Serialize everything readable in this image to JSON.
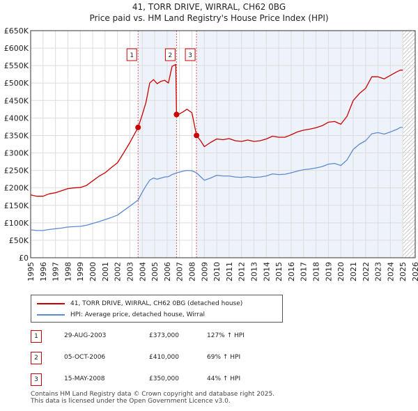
{
  "title": {
    "line1": "41, TORR DRIVE, WIRRAL, CH62 0BG",
    "line2": "Price paid vs. HM Land Registry's House Price Index (HPI)"
  },
  "colors": {
    "property": "#cc0000",
    "hpi": "#5b8bd0",
    "grid": "#dddddd",
    "axis": "#333333",
    "shade": "#eef2fa",
    "marker_line": "#e06060",
    "hatch": "#999999"
  },
  "chart_data": {
    "type": "line",
    "xlim": [
      1995,
      2026
    ],
    "ylim": [
      0,
      650000
    ],
    "y_ticks": [
      {
        "value": 0,
        "label": "£0"
      },
      {
        "value": 50000,
        "label": "£50K"
      },
      {
        "value": 100000,
        "label": "£100K"
      },
      {
        "value": 150000,
        "label": "£150K"
      },
      {
        "value": 200000,
        "label": "£200K"
      },
      {
        "value": 250000,
        "label": "£250K"
      },
      {
        "value": 300000,
        "label": "£300K"
      },
      {
        "value": 350000,
        "label": "£350K"
      },
      {
        "value": 400000,
        "label": "£400K"
      },
      {
        "value": 450000,
        "label": "£450K"
      },
      {
        "value": 500000,
        "label": "£500K"
      },
      {
        "value": 550000,
        "label": "£550K"
      },
      {
        "value": 600000,
        "label": "£600K"
      },
      {
        "value": 650000,
        "label": "£650K"
      }
    ],
    "x_ticks": [
      "1995",
      "1996",
      "1997",
      "1998",
      "1999",
      "2000",
      "2001",
      "2002",
      "2003",
      "2004",
      "2005",
      "2006",
      "2007",
      "2008",
      "2009",
      "2010",
      "2011",
      "2012",
      "2013",
      "2014",
      "2015",
      "2016",
      "2017",
      "2018",
      "2019",
      "2020",
      "2021",
      "2022",
      "2023",
      "2024",
      "2025",
      "2026"
    ],
    "shaded_ranges": [
      [
        2003.66,
        2006.76
      ],
      [
        2008.37,
        2025.0
      ]
    ],
    "hatch_start": 2025.0,
    "series": [
      {
        "name": "41, TORR DRIVE, WIRRAL, CH62 0BG (detached house)",
        "color": "#cc0000",
        "points": [
          [
            1995.0,
            180000
          ],
          [
            1995.5,
            176000
          ],
          [
            1996.0,
            176000
          ],
          [
            1996.5,
            183000
          ],
          [
            1997.0,
            186000
          ],
          [
            1997.5,
            192000
          ],
          [
            1998.0,
            198000
          ],
          [
            1998.5,
            200000
          ],
          [
            1999.0,
            201000
          ],
          [
            1999.5,
            207000
          ],
          [
            2000.0,
            220000
          ],
          [
            2000.5,
            233000
          ],
          [
            2001.0,
            243000
          ],
          [
            2001.5,
            258000
          ],
          [
            2002.0,
            272000
          ],
          [
            2002.5,
            300000
          ],
          [
            2003.0,
            330000
          ],
          [
            2003.66,
            373000
          ],
          [
            2004.0,
            410000
          ],
          [
            2004.3,
            445000
          ],
          [
            2004.6,
            500000
          ],
          [
            2004.9,
            510000
          ],
          [
            2005.2,
            498000
          ],
          [
            2005.5,
            505000
          ],
          [
            2005.8,
            508000
          ],
          [
            2006.1,
            500000
          ],
          [
            2006.4,
            548000
          ],
          [
            2006.7,
            553000
          ],
          [
            2006.76,
            410000
          ],
          [
            2007.0,
            412000
          ],
          [
            2007.3,
            418000
          ],
          [
            2007.6,
            425000
          ],
          [
            2008.0,
            415000
          ],
          [
            2008.37,
            350000
          ],
          [
            2008.7,
            335000
          ],
          [
            2009.0,
            318000
          ],
          [
            2009.5,
            330000
          ],
          [
            2010.0,
            340000
          ],
          [
            2010.5,
            338000
          ],
          [
            2011.0,
            341000
          ],
          [
            2011.5,
            335000
          ],
          [
            2012.0,
            333000
          ],
          [
            2012.5,
            337000
          ],
          [
            2013.0,
            333000
          ],
          [
            2013.5,
            335000
          ],
          [
            2014.0,
            340000
          ],
          [
            2014.5,
            348000
          ],
          [
            2015.0,
            345000
          ],
          [
            2015.5,
            345000
          ],
          [
            2016.0,
            352000
          ],
          [
            2016.5,
            360000
          ],
          [
            2017.0,
            365000
          ],
          [
            2017.5,
            368000
          ],
          [
            2018.0,
            372000
          ],
          [
            2018.5,
            378000
          ],
          [
            2019.0,
            388000
          ],
          [
            2019.5,
            390000
          ],
          [
            2020.0,
            382000
          ],
          [
            2020.5,
            405000
          ],
          [
            2021.0,
            450000
          ],
          [
            2021.5,
            470000
          ],
          [
            2022.0,
            485000
          ],
          [
            2022.5,
            518000
          ],
          [
            2023.0,
            518000
          ],
          [
            2023.5,
            512000
          ],
          [
            2024.0,
            522000
          ],
          [
            2024.5,
            532000
          ],
          [
            2024.8,
            537000
          ],
          [
            2025.0,
            537000
          ]
        ]
      },
      {
        "name": "HPI: Average price, detached house, Wirral",
        "color": "#5b8bd0",
        "points": [
          [
            1995.0,
            80000
          ],
          [
            1995.5,
            78000
          ],
          [
            1996.0,
            78000
          ],
          [
            1996.5,
            81000
          ],
          [
            1997.0,
            83000
          ],
          [
            1997.5,
            85000
          ],
          [
            1998.0,
            88000
          ],
          [
            1998.5,
            89000
          ],
          [
            1999.0,
            90000
          ],
          [
            1999.5,
            93000
          ],
          [
            2000.0,
            98000
          ],
          [
            2000.5,
            103000
          ],
          [
            2001.0,
            109000
          ],
          [
            2001.5,
            115000
          ],
          [
            2002.0,
            122000
          ],
          [
            2002.5,
            135000
          ],
          [
            2003.0,
            148000
          ],
          [
            2003.66,
            165000
          ],
          [
            2004.0,
            188000
          ],
          [
            2004.3,
            206000
          ],
          [
            2004.6,
            222000
          ],
          [
            2004.9,
            228000
          ],
          [
            2005.2,
            225000
          ],
          [
            2005.5,
            228000
          ],
          [
            2005.8,
            231000
          ],
          [
            2006.1,
            232000
          ],
          [
            2006.4,
            238000
          ],
          [
            2006.76,
            243000
          ],
          [
            2007.0,
            245000
          ],
          [
            2007.3,
            248000
          ],
          [
            2007.6,
            250000
          ],
          [
            2008.0,
            249000
          ],
          [
            2008.37,
            243000
          ],
          [
            2008.7,
            232000
          ],
          [
            2009.0,
            222000
          ],
          [
            2009.5,
            228000
          ],
          [
            2010.0,
            236000
          ],
          [
            2010.5,
            234000
          ],
          [
            2011.0,
            234000
          ],
          [
            2011.5,
            231000
          ],
          [
            2012.0,
            230000
          ],
          [
            2012.5,
            232000
          ],
          [
            2013.0,
            230000
          ],
          [
            2013.5,
            231000
          ],
          [
            2014.0,
            234000
          ],
          [
            2014.5,
            240000
          ],
          [
            2015.0,
            238000
          ],
          [
            2015.5,
            239000
          ],
          [
            2016.0,
            243000
          ],
          [
            2016.5,
            248000
          ],
          [
            2017.0,
            252000
          ],
          [
            2017.5,
            254000
          ],
          [
            2018.0,
            257000
          ],
          [
            2018.5,
            261000
          ],
          [
            2019.0,
            268000
          ],
          [
            2019.5,
            270000
          ],
          [
            2020.0,
            264000
          ],
          [
            2020.5,
            280000
          ],
          [
            2021.0,
            310000
          ],
          [
            2021.5,
            325000
          ],
          [
            2022.0,
            335000
          ],
          [
            2022.5,
            355000
          ],
          [
            2023.0,
            358000
          ],
          [
            2023.5,
            354000
          ],
          [
            2024.0,
            360000
          ],
          [
            2024.5,
            367000
          ],
          [
            2024.8,
            373000
          ],
          [
            2025.0,
            373000
          ]
        ]
      }
    ],
    "sale_markers": [
      {
        "label": "1",
        "x": 2003.66,
        "y": 373000
      },
      {
        "label": "2",
        "x": 2006.76,
        "y": 410000
      },
      {
        "label": "3",
        "x": 2008.37,
        "y": 350000
      }
    ]
  },
  "legend": {
    "property_label": "41, TORR DRIVE, WIRRAL, CH62 0BG (detached house)",
    "hpi_label": "HPI: Average price, detached house, Wirral"
  },
  "transactions": [
    {
      "num": "1",
      "date": "29-AUG-2003",
      "price": "£373,000",
      "hpi": "127% ↑ HPI"
    },
    {
      "num": "2",
      "date": "05-OCT-2006",
      "price": "£410,000",
      "hpi": "69% ↑ HPI"
    },
    {
      "num": "3",
      "date": "15-MAY-2008",
      "price": "£350,000",
      "hpi": "44% ↑ HPI"
    }
  ],
  "footer": {
    "line1": "Contains HM Land Registry data © Crown copyright and database right 2025.",
    "line2": "This data is licensed under the Open Government Licence v3.0."
  }
}
